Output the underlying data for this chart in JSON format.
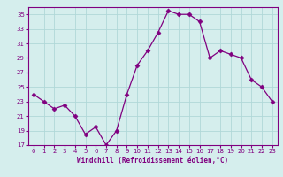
{
  "x": [
    0,
    1,
    2,
    3,
    4,
    5,
    6,
    7,
    8,
    9,
    10,
    11,
    12,
    13,
    14,
    15,
    16,
    17,
    18,
    19,
    20,
    21,
    22,
    23
  ],
  "y": [
    24,
    23,
    22,
    22.5,
    21,
    18.5,
    19.5,
    17,
    19,
    24,
    28,
    30,
    32.5,
    35.5,
    35,
    35,
    34,
    29,
    30,
    29.5,
    29,
    26,
    25,
    23
  ],
  "line_color": "#800080",
  "marker": "D",
  "marker_size": 2.5,
  "bg_color": "#d5eeed",
  "grid_color": "#b0d8d8",
  "xlabel": "Windchill (Refroidissement éolien,°C)",
  "xlabel_color": "#800080",
  "tick_color": "#800080",
  "ylim": [
    17,
    36
  ],
  "yticks": [
    17,
    19,
    21,
    23,
    25,
    27,
    29,
    31,
    33,
    35
  ],
  "xlim": [
    -0.5,
    23.5
  ],
  "xticks": [
    0,
    1,
    2,
    3,
    4,
    5,
    6,
    7,
    8,
    9,
    10,
    11,
    12,
    13,
    14,
    15,
    16,
    17,
    18,
    19,
    20,
    21,
    22,
    23
  ],
  "spine_color": "#800080",
  "font_size_ticks": 5.0,
  "font_size_xlabel": 5.5
}
